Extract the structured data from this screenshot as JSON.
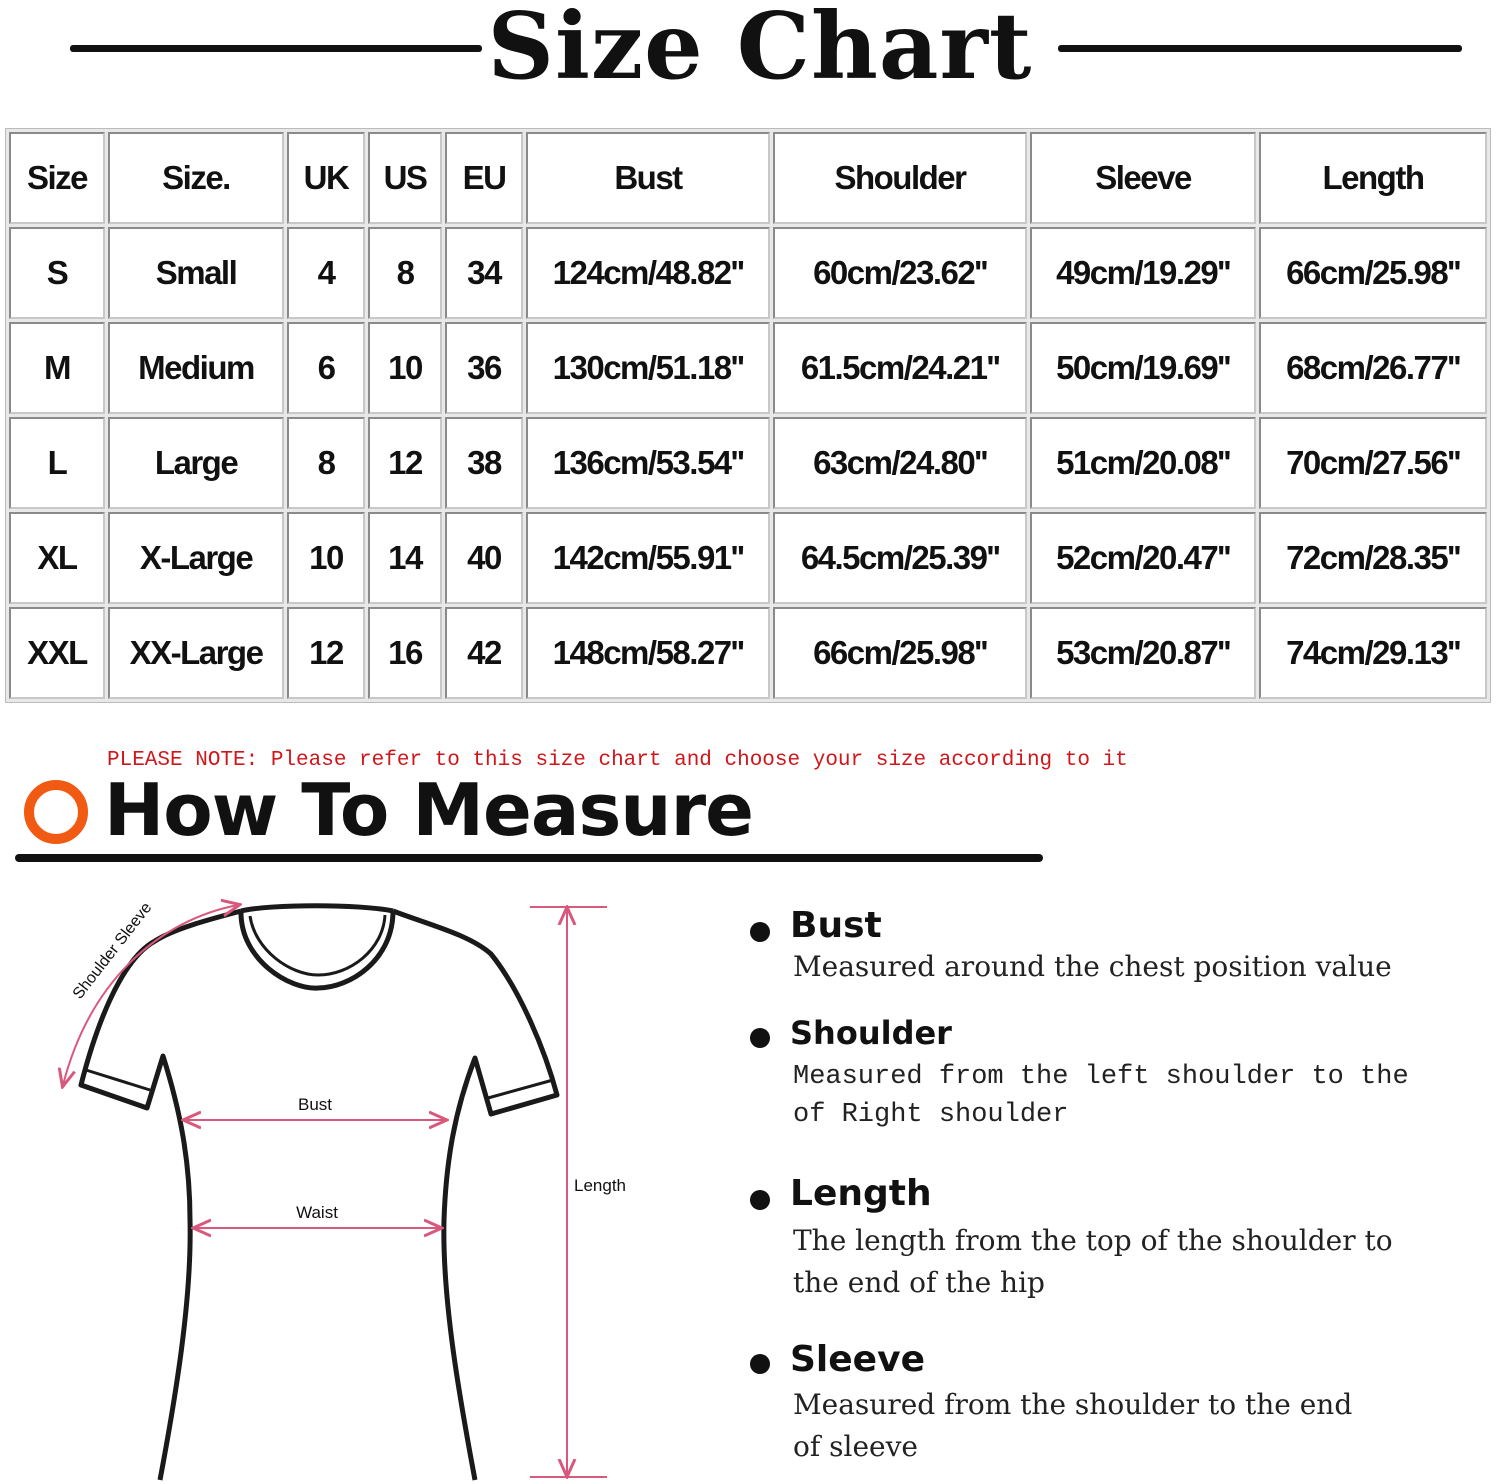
{
  "title": "Size Chart",
  "table": {
    "headers": [
      "Size",
      "Size.",
      "UK",
      "US",
      "EU",
      "Bust",
      "Shoulder",
      "Sleeve",
      "Length"
    ],
    "rows": [
      [
        "S",
        "Small",
        "4",
        "8",
        "34",
        "124cm/48.82''",
        "60cm/23.62''",
        "49cm/19.29''",
        "66cm/25.98''"
      ],
      [
        "M",
        "Medium",
        "6",
        "10",
        "36",
        "130cm/51.18''",
        "61.5cm/24.21''",
        "50cm/19.69''",
        "68cm/26.77''"
      ],
      [
        "L",
        "Large",
        "8",
        "12",
        "38",
        "136cm/53.54''",
        "63cm/24.80''",
        "51cm/20.08''",
        "70cm/27.56''"
      ],
      [
        "XL",
        "X-Large",
        "10",
        "14",
        "40",
        "142cm/55.91''",
        "64.5cm/25.39''",
        "52cm/20.47''",
        "72cm/28.35''"
      ],
      [
        "XXL",
        "XX-Large",
        "12",
        "16",
        "42",
        "148cm/58.27''",
        "66cm/25.98''",
        "53cm/20.87''",
        "74cm/29.13''"
      ]
    ]
  },
  "note": "PLEASE NOTE: Please refer to this size chart and choose your size according to it",
  "measure": {
    "title": "How To Measure",
    "icon": "orange-ring-icon",
    "accent_color": "#f05a12",
    "note_color": "#d0161a",
    "diagram": {
      "shoulder_sleeve_label": "Shoulder Sleeve",
      "bust_label": "Bust",
      "waist_label": "Waist",
      "length_label": "Length",
      "line_color": "#d9587e"
    },
    "items": [
      {
        "heading": "Bust",
        "lines": [
          "Measured around the chest position value"
        ]
      },
      {
        "heading": "Shoulder",
        "lines": [
          "Measured from the left shoulder to the",
          "of Right shoulder"
        ]
      },
      {
        "heading": "Length",
        "lines": [
          "The length from the top of the shoulder to",
          "the end of the hip"
        ]
      },
      {
        "heading": "Sleeve",
        "lines": [
          "Measured from the shoulder to the end",
          "of sleeve"
        ]
      }
    ]
  }
}
